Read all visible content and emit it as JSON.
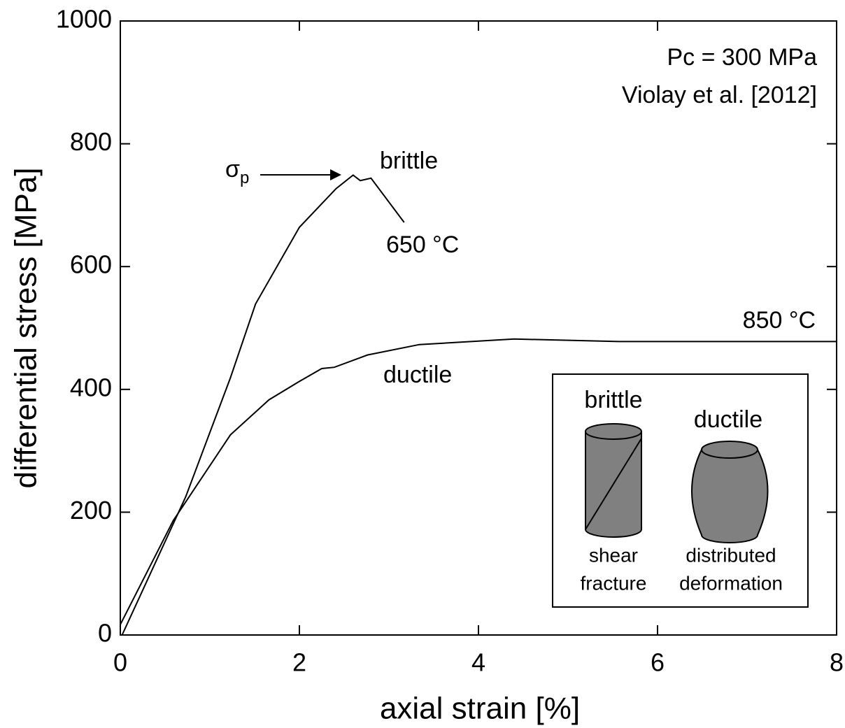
{
  "chart_data": {
    "type": "line",
    "xlabel": "axial strain [%]",
    "ylabel": "differential stress [MPa]",
    "xlim": [
      0,
      8
    ],
    "xticks": [
      0,
      2,
      4,
      6,
      8
    ],
    "ylim": [
      0,
      1000
    ],
    "yticks": [
      0,
      200,
      400,
      600,
      800,
      1000
    ],
    "series": [
      {
        "name": "650 °C",
        "color": "#000000",
        "x": [
          0.02,
          0.73,
          1.23,
          1.51,
          2.0,
          2.41,
          2.6,
          2.68,
          2.8,
          3.17
        ],
        "values": [
          0,
          225,
          419,
          539,
          664,
          727,
          749,
          740,
          744,
          672
        ]
      },
      {
        "name": "850 °C",
        "color": "#000000",
        "x": [
          0,
          0.59,
          1.23,
          1.66,
          2.0,
          2.25,
          2.39,
          2.76,
          3.34,
          4.4,
          5.57,
          8
        ],
        "values": [
          17,
          186,
          326,
          383,
          413,
          434,
          436,
          456,
          473,
          482,
          478,
          478
        ]
      }
    ],
    "annotations": {
      "conditions": "Pc = 300 MPa",
      "source": "Violay et al. [2012]",
      "peak_symbol": "σ",
      "peak_subscript": "p",
      "brittle": "brittle",
      "ductile": "ductile"
    },
    "inset": {
      "brittle_title": "brittle",
      "ductile_title": "ductile",
      "brittle_caption": [
        "shear",
        "fracture"
      ],
      "ductile_caption": [
        "distributed",
        "deformation"
      ]
    }
  }
}
